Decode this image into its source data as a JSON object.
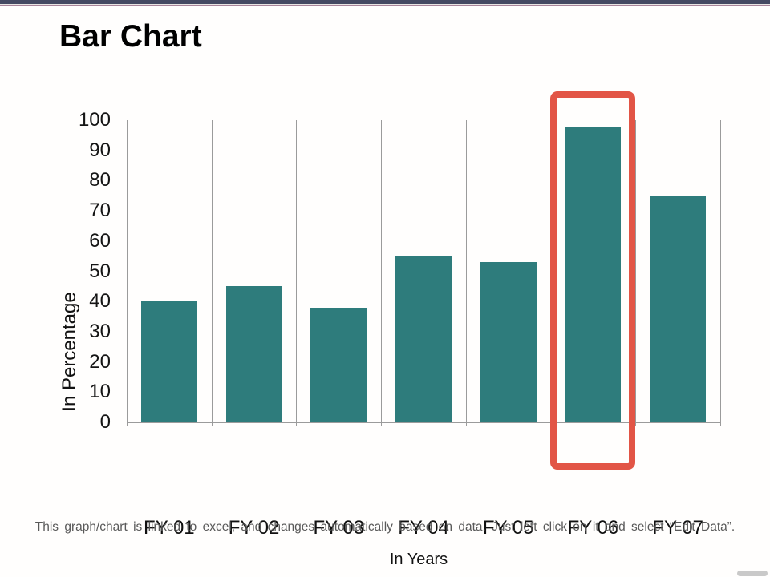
{
  "slide": {
    "title": "Bar Chart",
    "caption": "This graph/chart is linked to excel, and changes automatically based on data. Just left click on it and select “Edit Data”."
  },
  "chart_data": {
    "type": "bar",
    "title": "Bar Chart",
    "categories": [
      "FY 01",
      "FY 02",
      "FY 03",
      "FY 04",
      "FY 05",
      "FY 06",
      "FY 07"
    ],
    "values": [
      40,
      45,
      38,
      55,
      53,
      98,
      75
    ],
    "xlabel": "In Years",
    "ylabel": "In Percentage",
    "ylim": [
      0,
      100
    ],
    "yticks": [
      0,
      10,
      20,
      30,
      40,
      50,
      60,
      70,
      80,
      90,
      100
    ],
    "grid": "vertical category separators only, no horizontal gridlines",
    "legend_position": "none",
    "highlighted_category": "FY 06"
  },
  "colors": {
    "bar_fill": "#2E7C7C",
    "highlight_box": "#E25546",
    "axis_line": "#9B9B9B",
    "gridline": "#9B9B9B",
    "title_text": "#000000",
    "tick_text": "#151515",
    "caption_text": "#595959",
    "top_band_dark": "#444A62",
    "top_band_light": "#E9E5E3",
    "top_band_mauve": "#A8849A",
    "footer_pill": "#C9C9C9",
    "background": "#FFFEFD"
  }
}
